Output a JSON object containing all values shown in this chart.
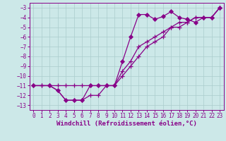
{
  "bg_color": "#cce8e8",
  "grid_color": "#aacccc",
  "line_color": "#880088",
  "xlabel": "Windchill (Refroidissement éolien,°C)",
  "xlim": [
    -0.5,
    23.5
  ],
  "ylim": [
    -13.5,
    -2.5
  ],
  "xticks": [
    0,
    1,
    2,
    3,
    4,
    5,
    6,
    7,
    8,
    9,
    10,
    11,
    12,
    13,
    14,
    15,
    16,
    17,
    18,
    19,
    20,
    21,
    22,
    23
  ],
  "yticks": [
    -13,
    -12,
    -11,
    -10,
    -9,
    -8,
    -7,
    -6,
    -5,
    -4,
    -3
  ],
  "line1_x": [
    0,
    1,
    2,
    3,
    4,
    5,
    6,
    7,
    8,
    9,
    10,
    11,
    12,
    13,
    14,
    15,
    16,
    17,
    18,
    19,
    20,
    21,
    22,
    23
  ],
  "line1_y": [
    -11,
    -11,
    -11,
    -11,
    -11,
    -11,
    -11,
    -11,
    -11,
    -11,
    -11,
    -10,
    -9,
    -8,
    -7,
    -6.5,
    -6,
    -5,
    -5,
    -4.5,
    -4,
    -4,
    -4,
    -3
  ],
  "line2_x": [
    0,
    1,
    2,
    3,
    4,
    5,
    6,
    7,
    8,
    9,
    10,
    11,
    12,
    13,
    14,
    15,
    16,
    17,
    18,
    19,
    20,
    21,
    22,
    23
  ],
  "line2_y": [
    -11,
    -11,
    -11,
    -11.5,
    -12.5,
    -12.5,
    -12.5,
    -12,
    -12,
    -11,
    -11,
    -9.5,
    -8.5,
    -7,
    -6.5,
    -6,
    -5.5,
    -5,
    -4.5,
    -4.5,
    -4,
    -4,
    -4,
    -3
  ],
  "line3_x": [
    0,
    2,
    3,
    4,
    5,
    6,
    7,
    8,
    9,
    10,
    11,
    12,
    13,
    14,
    15,
    16,
    17,
    18,
    19,
    20,
    21,
    22,
    23
  ],
  "line3_y": [
    -11,
    -11,
    -11.5,
    -12.5,
    -12.5,
    -12.5,
    -11,
    -11,
    -11,
    -11,
    -8.5,
    -6,
    -3.7,
    -3.7,
    -4.2,
    -3.9,
    -3.4,
    -4,
    -4.2,
    -4.5,
    -4,
    -4,
    -3
  ],
  "font_size_ticks": 5.5,
  "font_size_label": 6.5,
  "line_width": 0.9,
  "marker_size_plus": 4,
  "marker_size_diamond": 3
}
